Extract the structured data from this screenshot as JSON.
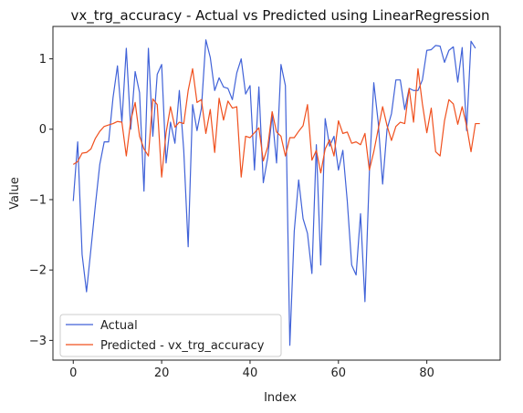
{
  "chart_data": {
    "type": "line",
    "title": "vx_trg_accuracy - Actual vs Predicted using LinearRegression",
    "xlabel": "Index",
    "ylabel": "Value",
    "xlim": [
      -4.6,
      96.6
    ],
    "ylim": [
      -3.28,
      1.46
    ],
    "xticks": [
      0,
      20,
      40,
      60,
      80
    ],
    "yticks": [
      -3,
      -2,
      -1,
      0,
      1
    ],
    "legend_position": "lower-left",
    "grid": false,
    "series": [
      {
        "name": "Actual",
        "color": "#4062d8",
        "values": [
          -1.02,
          -0.18,
          -1.78,
          -2.31,
          -1.7,
          -1.08,
          -0.5,
          -0.18,
          -0.18,
          0.45,
          0.9,
          0.1,
          1.15,
          0.0,
          0.82,
          0.52,
          -0.88,
          1.15,
          -0.1,
          0.78,
          0.92,
          -0.48,
          0.1,
          -0.2,
          0.55,
          -0.3,
          -1.67,
          0.35,
          -0.02,
          0.3,
          1.27,
          1.02,
          0.55,
          0.73,
          0.6,
          0.58,
          0.42,
          0.8,
          1.0,
          0.5,
          0.62,
          -0.58,
          0.6,
          -0.76,
          -0.4,
          0.2,
          -0.48,
          0.92,
          0.62,
          -3.07,
          -1.45,
          -0.72,
          -1.27,
          -1.48,
          -2.05,
          -0.22,
          -1.93,
          0.15,
          -0.24,
          -0.1,
          -0.58,
          -0.3,
          -1.02,
          -1.93,
          -2.07,
          -1.2,
          -2.45,
          -0.62,
          0.66,
          0.1,
          -0.78,
          0.0,
          0.22,
          0.7,
          0.7,
          0.28,
          0.58,
          0.55,
          0.55,
          0.7,
          1.12,
          1.13,
          1.19,
          1.18,
          0.95,
          1.12,
          1.17,
          0.67,
          1.16,
          -0.02,
          1.25,
          1.15
        ]
      },
      {
        "name": "Predicted - vx_trg_accuracy",
        "color": "#f0501e",
        "values": [
          -0.5,
          -0.46,
          -0.34,
          -0.33,
          -0.28,
          -0.13,
          -0.03,
          0.04,
          0.06,
          0.08,
          0.11,
          0.1,
          -0.38,
          0.12,
          0.38,
          -0.1,
          -0.28,
          -0.38,
          0.43,
          0.35,
          -0.68,
          -0.05,
          0.32,
          0.03,
          0.1,
          0.08,
          0.55,
          0.86,
          0.38,
          0.42,
          -0.06,
          0.28,
          -0.33,
          0.44,
          0.13,
          0.4,
          0.3,
          0.32,
          -0.68,
          -0.1,
          -0.12,
          -0.05,
          0.02,
          -0.45,
          -0.25,
          0.25,
          -0.04,
          -0.1,
          -0.38,
          -0.12,
          -0.12,
          -0.03,
          0.05,
          0.35,
          -0.44,
          -0.3,
          -0.62,
          -0.28,
          -0.15,
          -0.38,
          0.12,
          -0.06,
          -0.04,
          -0.2,
          -0.18,
          -0.22,
          -0.06,
          -0.58,
          -0.32,
          0.0,
          0.32,
          0.05,
          -0.16,
          0.04,
          0.1,
          0.08,
          0.58,
          0.1,
          0.86,
          0.36,
          -0.05,
          0.3,
          -0.32,
          -0.38,
          0.12,
          0.42,
          0.36,
          0.07,
          0.32,
          0.05,
          -0.32,
          0.08,
          0.08
        ]
      }
    ]
  }
}
